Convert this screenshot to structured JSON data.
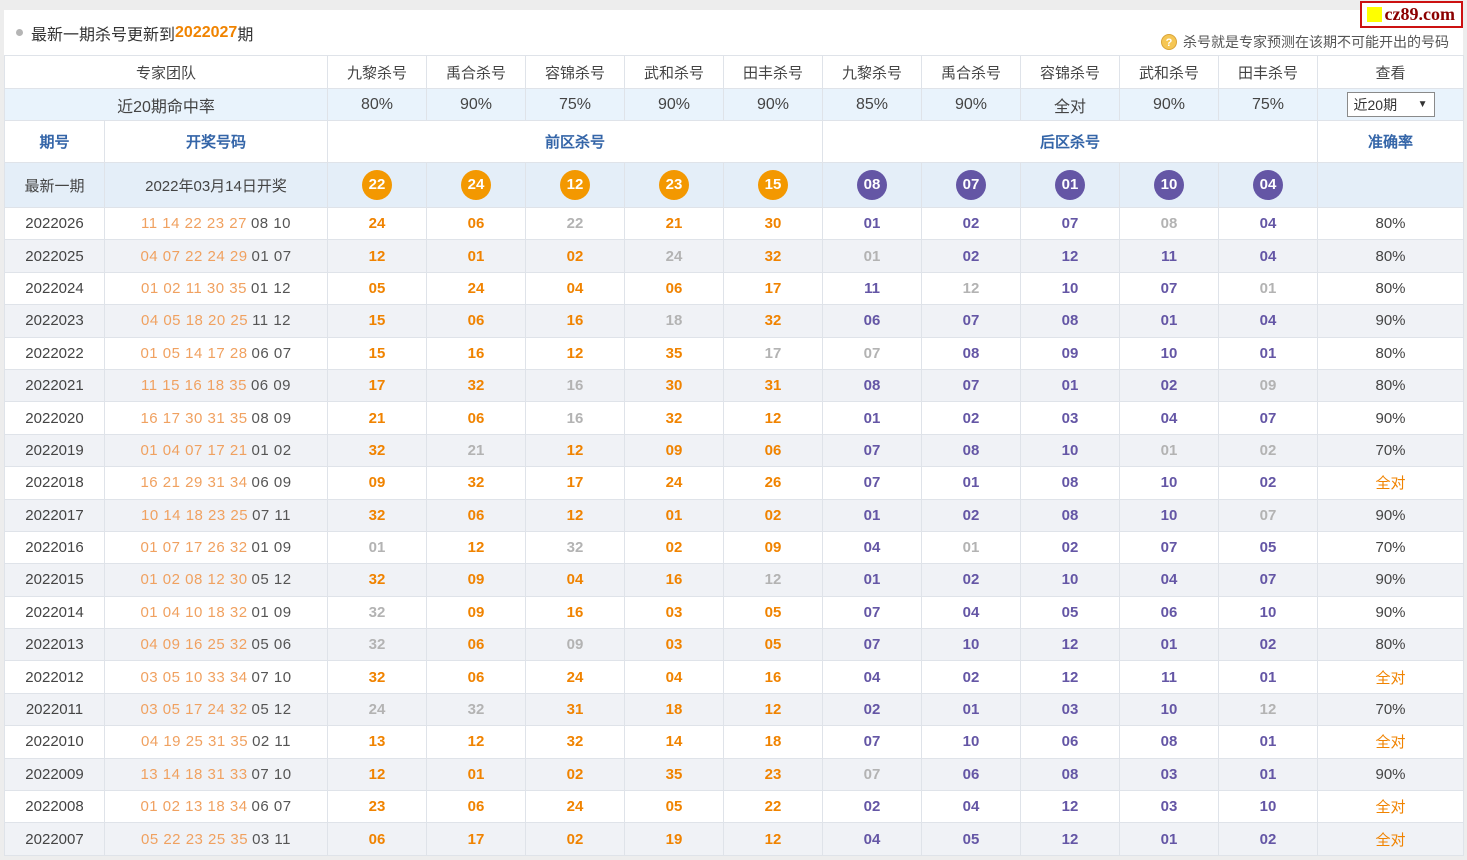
{
  "page": {
    "title_prefix": "最新一期杀号更新到",
    "title_issue": "2022027",
    "title_suffix": "期",
    "note": "杀号就是专家预测在该期不可能开出的号码",
    "help_glyph": "?",
    "logo": "cz89.com"
  },
  "header": {
    "team_label": "专家团队",
    "hitrate_label": "近20期命中率",
    "experts": [
      "九黎杀号",
      "禹合杀号",
      "容锦杀号",
      "武和杀号",
      "田丰杀号",
      "九黎杀号",
      "禹合杀号",
      "容锦杀号",
      "武和杀号",
      "田丰杀号"
    ],
    "hitrates": [
      "80%",
      "90%",
      "75%",
      "90%",
      "90%",
      "85%",
      "90%",
      "全对",
      "90%",
      "75%"
    ],
    "view_label": "查看",
    "view_select_value": "近20期",
    "issue_label": "期号",
    "numbers_label": "开奖号码",
    "front_label": "前区杀号",
    "back_label": "后区杀号",
    "accuracy_label": "准确率"
  },
  "latest_row": {
    "issue": "最新一期",
    "draw_date": "2022年03月14日开奖",
    "front_kills": [
      "22",
      "24",
      "12",
      "23",
      "15"
    ],
    "back_kills": [
      "08",
      "07",
      "01",
      "10",
      "04"
    ]
  },
  "rows": [
    {
      "issue": "2022026",
      "win_front": "11 14 22 23 27",
      "win_back": "08 10",
      "kills": [
        [
          "24",
          "o"
        ],
        [
          "06",
          "o"
        ],
        [
          "22",
          "g"
        ],
        [
          "21",
          "o"
        ],
        [
          "30",
          "o"
        ],
        [
          "01",
          "p"
        ],
        [
          "02",
          "p"
        ],
        [
          "07",
          "p"
        ],
        [
          "08",
          "g"
        ],
        [
          "04",
          "p"
        ]
      ],
      "accuracy": "80%"
    },
    {
      "issue": "2022025",
      "win_front": "04 07 22 24 29",
      "win_back": "01 07",
      "kills": [
        [
          "12",
          "o"
        ],
        [
          "01",
          "o"
        ],
        [
          "02",
          "o"
        ],
        [
          "24",
          "g"
        ],
        [
          "32",
          "o"
        ],
        [
          "01",
          "g"
        ],
        [
          "02",
          "p"
        ],
        [
          "12",
          "p"
        ],
        [
          "11",
          "p"
        ],
        [
          "04",
          "p"
        ]
      ],
      "accuracy": "80%"
    },
    {
      "issue": "2022024",
      "win_front": "01 02 11 30 35",
      "win_back": "01 12",
      "kills": [
        [
          "05",
          "o"
        ],
        [
          "24",
          "o"
        ],
        [
          "04",
          "o"
        ],
        [
          "06",
          "o"
        ],
        [
          "17",
          "o"
        ],
        [
          "11",
          "p"
        ],
        [
          "12",
          "g"
        ],
        [
          "10",
          "p"
        ],
        [
          "07",
          "p"
        ],
        [
          "01",
          "g"
        ]
      ],
      "accuracy": "80%"
    },
    {
      "issue": "2022023",
      "win_front": "04 05 18 20 25",
      "win_back": "11 12",
      "kills": [
        [
          "15",
          "o"
        ],
        [
          "06",
          "o"
        ],
        [
          "16",
          "o"
        ],
        [
          "18",
          "g"
        ],
        [
          "32",
          "o"
        ],
        [
          "06",
          "p"
        ],
        [
          "07",
          "p"
        ],
        [
          "08",
          "p"
        ],
        [
          "01",
          "p"
        ],
        [
          "04",
          "p"
        ]
      ],
      "accuracy": "90%"
    },
    {
      "issue": "2022022",
      "win_front": "01 05 14 17 28",
      "win_back": "06 07",
      "kills": [
        [
          "15",
          "o"
        ],
        [
          "16",
          "o"
        ],
        [
          "12",
          "o"
        ],
        [
          "35",
          "o"
        ],
        [
          "17",
          "g"
        ],
        [
          "07",
          "g"
        ],
        [
          "08",
          "p"
        ],
        [
          "09",
          "p"
        ],
        [
          "10",
          "p"
        ],
        [
          "01",
          "p"
        ]
      ],
      "accuracy": "80%"
    },
    {
      "issue": "2022021",
      "win_front": "11 15 16 18 35",
      "win_back": "06 09",
      "kills": [
        [
          "17",
          "o"
        ],
        [
          "32",
          "o"
        ],
        [
          "16",
          "g"
        ],
        [
          "30",
          "o"
        ],
        [
          "31",
          "o"
        ],
        [
          "08",
          "p"
        ],
        [
          "07",
          "p"
        ],
        [
          "01",
          "p"
        ],
        [
          "02",
          "p"
        ],
        [
          "09",
          "g"
        ]
      ],
      "accuracy": "80%"
    },
    {
      "issue": "2022020",
      "win_front": "16 17 30 31 35",
      "win_back": "08 09",
      "kills": [
        [
          "21",
          "o"
        ],
        [
          "06",
          "o"
        ],
        [
          "16",
          "g"
        ],
        [
          "32",
          "o"
        ],
        [
          "12",
          "o"
        ],
        [
          "01",
          "p"
        ],
        [
          "02",
          "p"
        ],
        [
          "03",
          "p"
        ],
        [
          "04",
          "p"
        ],
        [
          "07",
          "p"
        ]
      ],
      "accuracy": "90%"
    },
    {
      "issue": "2022019",
      "win_front": "01 04 07 17 21",
      "win_back": "01 02",
      "kills": [
        [
          "32",
          "o"
        ],
        [
          "21",
          "g"
        ],
        [
          "12",
          "o"
        ],
        [
          "09",
          "o"
        ],
        [
          "06",
          "o"
        ],
        [
          "07",
          "p"
        ],
        [
          "08",
          "p"
        ],
        [
          "10",
          "p"
        ],
        [
          "01",
          "g"
        ],
        [
          "02",
          "g"
        ]
      ],
      "accuracy": "70%"
    },
    {
      "issue": "2022018",
      "win_front": "16 21 29 31 34",
      "win_back": "06 09",
      "kills": [
        [
          "09",
          "o"
        ],
        [
          "32",
          "o"
        ],
        [
          "17",
          "o"
        ],
        [
          "24",
          "o"
        ],
        [
          "26",
          "o"
        ],
        [
          "07",
          "p"
        ],
        [
          "01",
          "p"
        ],
        [
          "08",
          "p"
        ],
        [
          "10",
          "p"
        ],
        [
          "02",
          "p"
        ]
      ],
      "accuracy": "全对"
    },
    {
      "issue": "2022017",
      "win_front": "10 14 18 23 25",
      "win_back": "07 11",
      "kills": [
        [
          "32",
          "o"
        ],
        [
          "06",
          "o"
        ],
        [
          "12",
          "o"
        ],
        [
          "01",
          "o"
        ],
        [
          "02",
          "o"
        ],
        [
          "01",
          "p"
        ],
        [
          "02",
          "p"
        ],
        [
          "08",
          "p"
        ],
        [
          "10",
          "p"
        ],
        [
          "07",
          "g"
        ]
      ],
      "accuracy": "90%"
    },
    {
      "issue": "2022016",
      "win_front": "01 07 17 26 32",
      "win_back": "01 09",
      "kills": [
        [
          "01",
          "g"
        ],
        [
          "12",
          "o"
        ],
        [
          "32",
          "g"
        ],
        [
          "02",
          "o"
        ],
        [
          "09",
          "o"
        ],
        [
          "04",
          "p"
        ],
        [
          "01",
          "g"
        ],
        [
          "02",
          "p"
        ],
        [
          "07",
          "p"
        ],
        [
          "05",
          "p"
        ]
      ],
      "accuracy": "70%"
    },
    {
      "issue": "2022015",
      "win_front": "01 02 08 12 30",
      "win_back": "05 12",
      "kills": [
        [
          "32",
          "o"
        ],
        [
          "09",
          "o"
        ],
        [
          "04",
          "o"
        ],
        [
          "16",
          "o"
        ],
        [
          "12",
          "g"
        ],
        [
          "01",
          "p"
        ],
        [
          "02",
          "p"
        ],
        [
          "10",
          "p"
        ],
        [
          "04",
          "p"
        ],
        [
          "07",
          "p"
        ]
      ],
      "accuracy": "90%"
    },
    {
      "issue": "2022014",
      "win_front": "01 04 10 18 32",
      "win_back": "01 09",
      "kills": [
        [
          "32",
          "g"
        ],
        [
          "09",
          "o"
        ],
        [
          "16",
          "o"
        ],
        [
          "03",
          "o"
        ],
        [
          "05",
          "o"
        ],
        [
          "07",
          "p"
        ],
        [
          "04",
          "p"
        ],
        [
          "05",
          "p"
        ],
        [
          "06",
          "p"
        ],
        [
          "10",
          "p"
        ]
      ],
      "accuracy": "90%"
    },
    {
      "issue": "2022013",
      "win_front": "04 09 16 25 32",
      "win_back": "05 06",
      "kills": [
        [
          "32",
          "g"
        ],
        [
          "06",
          "o"
        ],
        [
          "09",
          "g"
        ],
        [
          "03",
          "o"
        ],
        [
          "05",
          "o"
        ],
        [
          "07",
          "p"
        ],
        [
          "10",
          "p"
        ],
        [
          "12",
          "p"
        ],
        [
          "01",
          "p"
        ],
        [
          "02",
          "p"
        ]
      ],
      "accuracy": "80%"
    },
    {
      "issue": "2022012",
      "win_front": "03 05 10 33 34",
      "win_back": "07 10",
      "kills": [
        [
          "32",
          "o"
        ],
        [
          "06",
          "o"
        ],
        [
          "24",
          "o"
        ],
        [
          "04",
          "o"
        ],
        [
          "16",
          "o"
        ],
        [
          "04",
          "p"
        ],
        [
          "02",
          "p"
        ],
        [
          "12",
          "p"
        ],
        [
          "11",
          "p"
        ],
        [
          "01",
          "p"
        ]
      ],
      "accuracy": "全对"
    },
    {
      "issue": "2022011",
      "win_front": "03 05 17 24 32",
      "win_back": "05 12",
      "kills": [
        [
          "24",
          "g"
        ],
        [
          "32",
          "g"
        ],
        [
          "31",
          "o"
        ],
        [
          "18",
          "o"
        ],
        [
          "12",
          "o"
        ],
        [
          "02",
          "p"
        ],
        [
          "01",
          "p"
        ],
        [
          "03",
          "p"
        ],
        [
          "10",
          "p"
        ],
        [
          "12",
          "g"
        ]
      ],
      "accuracy": "70%"
    },
    {
      "issue": "2022010",
      "win_front": "04 19 25 31 35",
      "win_back": "02 11",
      "kills": [
        [
          "13",
          "o"
        ],
        [
          "12",
          "o"
        ],
        [
          "32",
          "o"
        ],
        [
          "14",
          "o"
        ],
        [
          "18",
          "o"
        ],
        [
          "07",
          "p"
        ],
        [
          "10",
          "p"
        ],
        [
          "06",
          "p"
        ],
        [
          "08",
          "p"
        ],
        [
          "01",
          "p"
        ]
      ],
      "accuracy": "全对"
    },
    {
      "issue": "2022009",
      "win_front": "13 14 18 31 33",
      "win_back": "07 10",
      "kills": [
        [
          "12",
          "o"
        ],
        [
          "01",
          "o"
        ],
        [
          "02",
          "o"
        ],
        [
          "35",
          "o"
        ],
        [
          "23",
          "o"
        ],
        [
          "07",
          "g"
        ],
        [
          "06",
          "p"
        ],
        [
          "08",
          "p"
        ],
        [
          "03",
          "p"
        ],
        [
          "01",
          "p"
        ]
      ],
      "accuracy": "90%"
    },
    {
      "issue": "2022008",
      "win_front": "01 02 13 18 34",
      "win_back": "06 07",
      "kills": [
        [
          "23",
          "o"
        ],
        [
          "06",
          "o"
        ],
        [
          "24",
          "o"
        ],
        [
          "05",
          "o"
        ],
        [
          "22",
          "o"
        ],
        [
          "02",
          "p"
        ],
        [
          "04",
          "p"
        ],
        [
          "12",
          "p"
        ],
        [
          "03",
          "p"
        ],
        [
          "10",
          "p"
        ]
      ],
      "accuracy": "全对"
    },
    {
      "issue": "2022007",
      "win_front": "05 22 23 25 35",
      "win_back": "03 11",
      "kills": [
        [
          "06",
          "o"
        ],
        [
          "17",
          "o"
        ],
        [
          "02",
          "o"
        ],
        [
          "19",
          "o"
        ],
        [
          "12",
          "o"
        ],
        [
          "04",
          "p"
        ],
        [
          "05",
          "p"
        ],
        [
          "12",
          "p"
        ],
        [
          "01",
          "p"
        ],
        [
          "02",
          "p"
        ]
      ],
      "accuracy": "全对"
    }
  ],
  "colors": {
    "accent_orange": "#f39801",
    "accent_purple": "#6456a5",
    "miss_gray": "#b3b3b3",
    "header_blue": "#3465a8",
    "latest_row_bg": "#e4eef8"
  }
}
